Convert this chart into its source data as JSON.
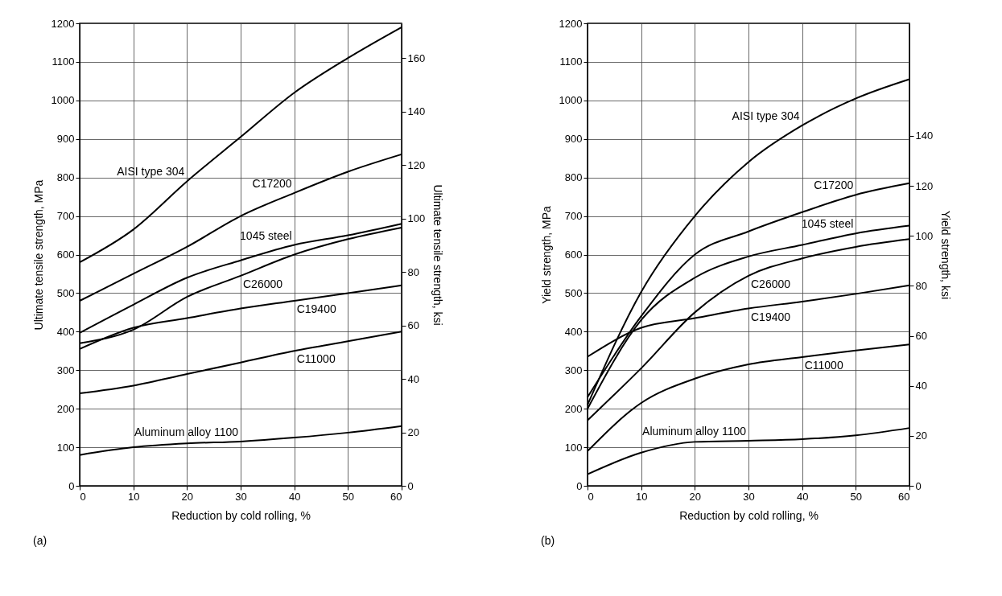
{
  "chart_data": [
    {
      "type": "line",
      "xlabel": "Reduction by cold rolling, %",
      "ylabel": "Ultimate tensile strength, MPa",
      "y2label": "Ultimate tensile strength, ksi",
      "x": [
        0,
        10,
        20,
        30,
        40,
        50,
        60
      ],
      "xlim": [
        0,
        60
      ],
      "xticks": [
        0,
        10,
        20,
        30,
        40,
        50,
        60
      ],
      "ylim": [
        0,
        1200
      ],
      "yticks": [
        0,
        100,
        200,
        300,
        400,
        500,
        600,
        700,
        800,
        900,
        1000,
        1100,
        1200
      ],
      "y2lim": [
        0,
        173
      ],
      "y2ticks": [
        0,
        20,
        40,
        60,
        80,
        100,
        120,
        140,
        160
      ],
      "grid": true,
      "legend": false,
      "marker": "none",
      "line_style": "solid",
      "series": [
        {
          "color": "#000000",
          "values": [
            580,
            665,
            790,
            905,
            1020,
            1110,
            1190
          ]
        },
        {
          "color": "#000000",
          "values": [
            480,
            550,
            620,
            700,
            760,
            815,
            860
          ]
        },
        {
          "color": "#000000",
          "values": [
            397,
            470,
            540,
            585,
            625,
            650,
            680
          ]
        },
        {
          "color": "#000000",
          "values": [
            370,
            405,
            490,
            545,
            600,
            640,
            670
          ]
        },
        {
          "color": "#000000",
          "values": [
            355,
            410,
            435,
            460,
            480,
            500,
            520
          ]
        },
        {
          "color": "#000000",
          "values": [
            240,
            260,
            290,
            320,
            350,
            375,
            400
          ]
        },
        {
          "color": "#000000",
          "values": [
            80,
            100,
            110,
            115,
            125,
            138,
            155
          ]
        }
      ],
      "annotations": [
        {
          "text": "AISI type 304",
          "x": 20,
          "y": 790
        },
        {
          "text": "C17200",
          "x": 40,
          "y": 760
        },
        {
          "text": "1045 steel",
          "x": 40,
          "y": 625
        },
        {
          "text": "C26000",
          "x": 30,
          "y": 545
        },
        {
          "text": "C19400",
          "x": 40,
          "y": 480
        },
        {
          "text": "C11000",
          "x": 40,
          "y": 350
        },
        {
          "text": "Aluminum alloy 1100",
          "x": 30,
          "y": 115
        },
        "(a)"
      ]
    },
    {
      "type": "line",
      "xlabel": "Reduction by cold rolling, %",
      "ylabel": "Yield strength, MPa",
      "y2label": "Yield strength, ksi",
      "x": [
        0,
        10,
        20,
        30,
        40,
        50,
        60
      ],
      "xlim": [
        0,
        60
      ],
      "xticks": [
        0,
        10,
        20,
        30,
        40,
        50,
        60
      ],
      "ylim": [
        0,
        1200
      ],
      "yticks": [
        0,
        100,
        200,
        300,
        400,
        500,
        600,
        700,
        800,
        900,
        1000,
        1100,
        1200
      ],
      "y2lim": [
        0,
        185
      ],
      "y2ticks": [
        0,
        20,
        40,
        60,
        80,
        100,
        120,
        140
      ],
      "grid": true,
      "legend": false,
      "marker": "none",
      "line_style": "solid",
      "series": [
        {
          "color": "#000000",
          "values": [
            210,
            503,
            700,
            840,
            935,
            1005,
            1055
          ]
        },
        {
          "color": "#000000",
          "values": [
            230,
            440,
            600,
            660,
            710,
            755,
            785
          ]
        },
        {
          "color": "#000000",
          "values": [
            200,
            430,
            540,
            595,
            625,
            655,
            675
          ]
        },
        {
          "color": "#000000",
          "values": [
            170,
            305,
            450,
            545,
            590,
            620,
            640
          ]
        },
        {
          "color": "#000000",
          "values": [
            335,
            410,
            435,
            460,
            478,
            498,
            520
          ]
        },
        {
          "color": "#000000",
          "values": [
            90,
            215,
            278,
            315,
            334,
            351,
            367
          ]
        },
        {
          "color": "#000000",
          "values": [
            30,
            86,
            114,
            117,
            121,
            131,
            150
          ]
        }
      ],
      "annotations": [
        {
          "text": "AISI type 304",
          "x": 40,
          "y": 935
        },
        {
          "text": "C17200",
          "x": 50,
          "y": 755
        },
        {
          "text": "1045 steel",
          "x": 50,
          "y": 655
        },
        {
          "text": "C26000",
          "x": 30,
          "y": 545
        },
        {
          "text": "C19400",
          "x": 30,
          "y": 460
        },
        {
          "text": "C11000",
          "x": 40,
          "y": 334
        },
        {
          "text": "Aluminum alloy 1100",
          "x": 30,
          "y": 117
        },
        "(b)"
      ]
    }
  ]
}
